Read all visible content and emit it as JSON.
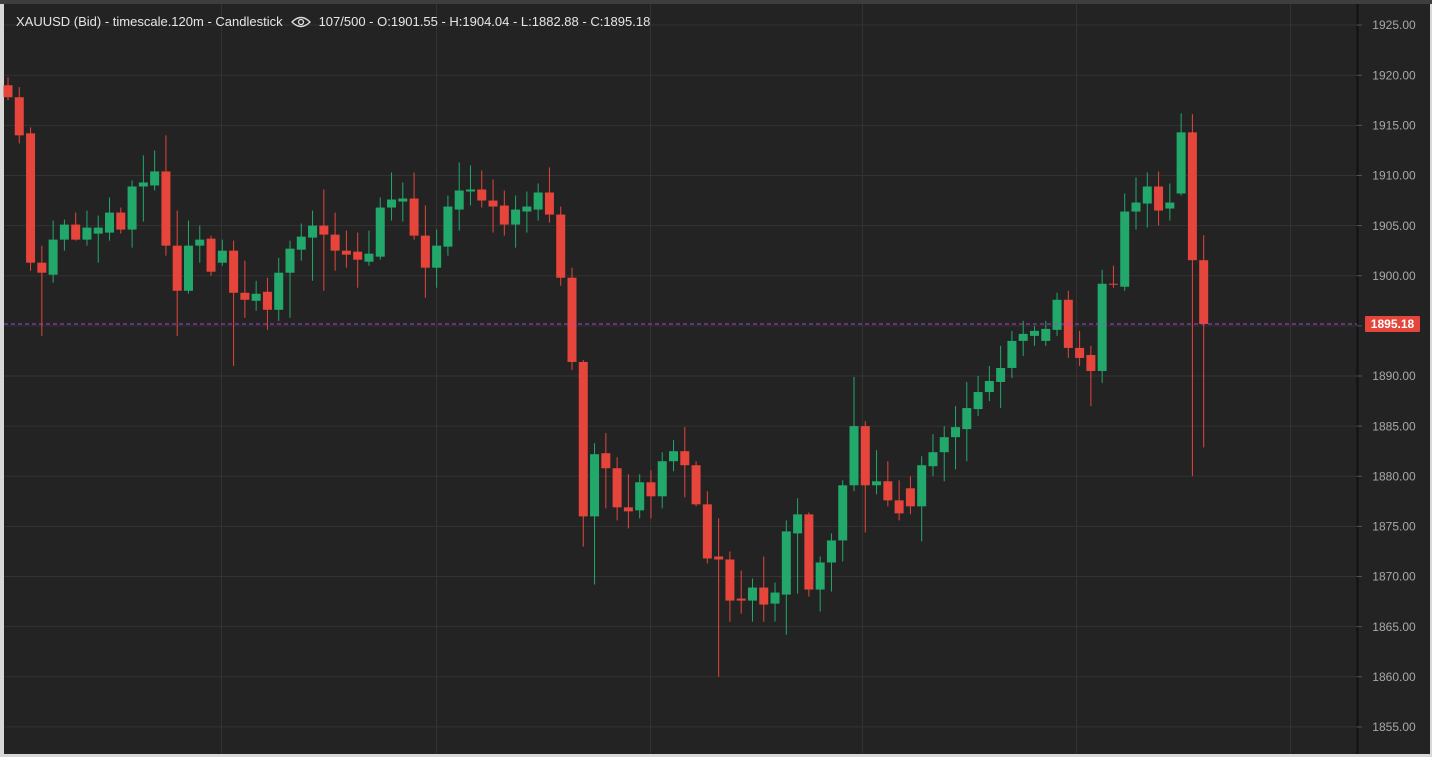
{
  "chart_data": {
    "type": "candlestick",
    "title": "XAUUSD (Bid) - timescale.120m - Candlestick",
    "info": "107/500 - O:1901.55 - H:1904.04 - L:1882.88 - C:1895.18",
    "up_color": "#22a86a",
    "down_color": "#e5453b",
    "grid": true,
    "last_price": 1895.18,
    "last_price_color": "#b23ccf",
    "ylim": [
      1852.5,
      1927
    ],
    "yticks": [
      {
        "value": 1855,
        "label": "1855.00"
      },
      {
        "value": 1860,
        "label": "1860.00"
      },
      {
        "value": 1865,
        "label": "1865.00"
      },
      {
        "value": 1870,
        "label": "1870.00"
      },
      {
        "value": 1875,
        "label": "1875.00"
      },
      {
        "value": 1880,
        "label": "1880.00"
      },
      {
        "value": 1885,
        "label": "1885.00"
      },
      {
        "value": 1890,
        "label": "1890.00"
      },
      {
        "value": 1895,
        "label": "1895.00"
      },
      {
        "value": 1900,
        "label": "1900.00"
      },
      {
        "value": 1905,
        "label": "1905.00"
      },
      {
        "value": 1910,
        "label": "1910.00"
      },
      {
        "value": 1915,
        "label": "1915.00"
      },
      {
        "value": 1920,
        "label": "1920.00"
      },
      {
        "value": 1925,
        "label": "1925.00"
      }
    ],
    "open": [
      1919.0,
      1917.8,
      1914.2,
      1901.3,
      1900.1,
      1903.6,
      1905.1,
      1903.6,
      1904.2,
      1904.3,
      1906.3,
      1904.6,
      1908.9,
      1909.0,
      1910.4,
      1903.0,
      1898.5,
      1903.0,
      1903.7,
      1901.3,
      1902.5,
      1898.3,
      1897.5,
      1898.4,
      1896.6,
      1900.3,
      1902.6,
      1903.8,
      1905.0,
      1904.1,
      1902.5,
      1902.4,
      1901.4,
      1901.9,
      1906.8,
      1907.4,
      1907.7,
      1904.0,
      1900.8,
      1902.9,
      1906.6,
      1908.4,
      1908.6,
      1907.5,
      1907.0,
      1905.1,
      1906.4,
      1906.6,
      1908.3,
      1906.1,
      1899.8,
      1891.4,
      1876.0,
      1882.3,
      1880.8,
      1876.9,
      1876.6,
      1879.4,
      1878.0,
      1881.5,
      1882.5,
      1881.1,
      1877.2,
      1872.0,
      1871.7,
      1867.8,
      1867.6,
      1868.9,
      1867.3,
      1868.2,
      1874.3,
      1876.2,
      1868.7,
      1871.4,
      1873.6,
      1879.1,
      1885.0,
      1879.1,
      1879.5,
      1877.6,
      1878.8,
      1877.0,
      1881.0,
      1882.4,
      1883.9,
      1884.7,
      1886.7,
      1888.4,
      1889.4,
      1890.8,
      1893.5,
      1894.0,
      1893.5,
      1894.6,
      1897.6,
      1892.8,
      1892.1,
      1890.5,
      1899.2,
      1898.9,
      1906.4,
      1907.2,
      1908.9,
      1906.7,
      1908.2,
      1914.3,
      1901.55
    ],
    "high": [
      1919.8,
      1918.8,
      1914.8,
      1903.0,
      1905.5,
      1905.6,
      1906.3,
      1906.5,
      1906.0,
      1907.8,
      1906.8,
      1909.5,
      1912.0,
      1912.5,
      1914.0,
      1906.5,
      1905.5,
      1905.0,
      1904.0,
      1903.6,
      1903.5,
      1901.5,
      1899.5,
      1899.8,
      1901.8,
      1903.5,
      1905.2,
      1906.5,
      1908.6,
      1906.3,
      1904.5,
      1904.3,
      1904.5,
      1907.8,
      1910.3,
      1909.3,
      1910.3,
      1907.0,
      1904.6,
      1908.0,
      1911.3,
      1911.0,
      1910.5,
      1909.6,
      1908.5,
      1908.0,
      1908.4,
      1909.2,
      1910.8,
      1906.9,
      1900.8,
      1891.6,
      1883.3,
      1884.3,
      1881.9,
      1880.2,
      1880.2,
      1880.6,
      1882.4,
      1883.6,
      1884.9,
      1881.5,
      1878.5,
      1875.8,
      1872.5,
      1870.6,
      1869.8,
      1872.0,
      1869.4,
      1875.6,
      1877.8,
      1876.4,
      1872.0,
      1874.3,
      1879.6,
      1889.9,
      1885.5,
      1882.6,
      1881.5,
      1879.6,
      1880.0,
      1882.0,
      1884.2,
      1885.0,
      1887.0,
      1889.4,
      1890.0,
      1891.0,
      1893.0,
      1894.5,
      1895.5,
      1895.0,
      1895.5,
      1898.3,
      1898.5,
      1894.5,
      1893.0,
      1900.6,
      1901.0,
      1908.2,
      1909.8,
      1910.3,
      1910.4,
      1909.2,
      1916.2,
      1916.1,
      1904.04
    ],
    "low": [
      1917.5,
      1913.2,
      1900.5,
      1894.0,
      1899.3,
      1902.5,
      1903.5,
      1903.0,
      1901.3,
      1903.5,
      1904.2,
      1902.8,
      1905.4,
      1908.5,
      1902.0,
      1894.0,
      1898.2,
      1901.3,
      1900.0,
      1901.0,
      1891.0,
      1895.8,
      1896.5,
      1894.6,
      1895.5,
      1895.8,
      1901.5,
      1899.5,
      1898.5,
      1900.5,
      1900.8,
      1898.8,
      1901.0,
      1901.6,
      1905.5,
      1905.4,
      1903.6,
      1897.8,
      1898.8,
      1902.0,
      1904.5,
      1907.0,
      1906.8,
      1904.3,
      1904.0,
      1902.8,
      1904.3,
      1905.5,
      1905.3,
      1899.0,
      1890.6,
      1873.0,
      1869.2,
      1876.8,
      1875.6,
      1874.8,
      1875.8,
      1875.8,
      1876.8,
      1880.5,
      1877.9,
      1877.0,
      1871.3,
      1860.0,
      1865.5,
      1866.3,
      1865.5,
      1865.5,
      1865.5,
      1864.2,
      1868.3,
      1868.0,
      1866.5,
      1868.5,
      1871.5,
      1878.5,
      1874.4,
      1878.2,
      1877.0,
      1875.6,
      1876.2,
      1873.5,
      1880.0,
      1879.5,
      1880.7,
      1881.5,
      1886.0,
      1887.5,
      1886.8,
      1889.8,
      1892.0,
      1893.0,
      1893.0,
      1894.0,
      1891.8,
      1891.0,
      1887.0,
      1889.3,
      1898.8,
      1898.5,
      1904.6,
      1904.8,
      1905.0,
      1905.5,
      1908.0,
      1880.0,
      1882.88
    ],
    "close": [
      1917.8,
      1914.0,
      1901.3,
      1900.3,
      1903.6,
      1905.1,
      1903.6,
      1904.8,
      1904.8,
      1906.3,
      1904.6,
      1908.9,
      1909.3,
      1910.4,
      1903.0,
      1898.5,
      1903.0,
      1903.6,
      1900.4,
      1902.5,
      1898.3,
      1897.6,
      1898.2,
      1896.6,
      1900.3,
      1902.7,
      1903.9,
      1905.0,
      1904.1,
      1902.5,
      1902.1,
      1901.6,
      1902.2,
      1906.8,
      1907.6,
      1907.7,
      1904.0,
      1900.8,
      1903.0,
      1906.9,
      1908.5,
      1908.6,
      1907.5,
      1906.9,
      1905.1,
      1906.6,
      1906.9,
      1908.3,
      1906.1,
      1899.8,
      1891.4,
      1876.0,
      1882.2,
      1880.8,
      1876.9,
      1876.5,
      1879.4,
      1878.0,
      1881.5,
      1882.5,
      1881.1,
      1877.2,
      1871.8,
      1871.7,
      1867.6,
      1867.6,
      1868.9,
      1867.2,
      1868.4,
      1874.5,
      1876.2,
      1868.7,
      1871.4,
      1873.6,
      1879.1,
      1885.0,
      1879.1,
      1879.5,
      1877.6,
      1876.3,
      1877.0,
      1881.1,
      1882.4,
      1883.9,
      1884.9,
      1886.8,
      1888.4,
      1889.5,
      1890.8,
      1893.5,
      1894.2,
      1894.5,
      1894.7,
      1897.6,
      1892.8,
      1891.8,
      1890.5,
      1899.2,
      1899.1,
      1906.4,
      1907.3,
      1908.9,
      1906.5,
      1907.3,
      1914.3,
      1901.55,
      1895.18
    ]
  }
}
